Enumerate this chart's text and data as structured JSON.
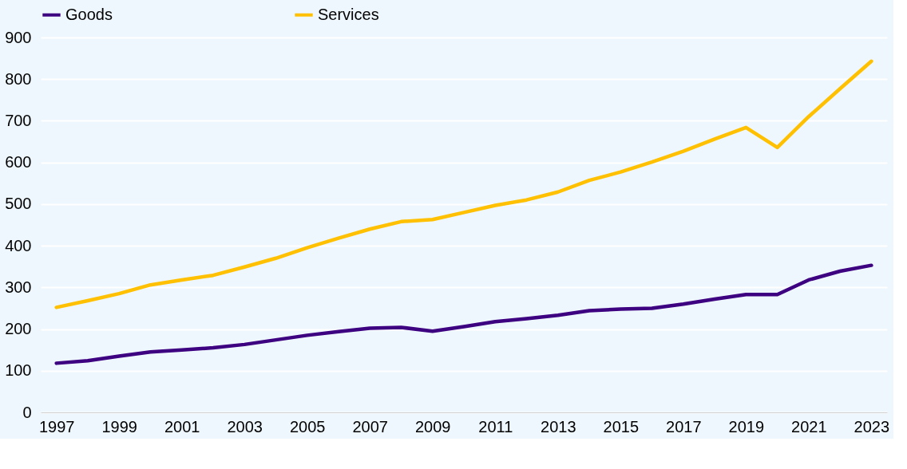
{
  "chart_data": {
    "type": "line",
    "categories": [
      "1997",
      null,
      "1999",
      null,
      "2001",
      null,
      "2003",
      null,
      "2005",
      null,
      "2007",
      null,
      "2009",
      null,
      "2011",
      null,
      "2013",
      null,
      "2015",
      null,
      "2017",
      null,
      "2019",
      null,
      "2021",
      null,
      "2023"
    ],
    "series": [
      {
        "name": "Goods",
        "color": "#3d0080",
        "values": [
          118,
          124,
          135,
          145,
          150,
          155,
          163,
          174,
          185,
          194,
          202,
          204,
          195,
          206,
          218,
          225,
          233,
          244,
          248,
          250,
          260,
          272,
          283,
          283,
          318,
          339,
          353
        ]
      },
      {
        "name": "Services",
        "color": "#ffc000",
        "values": [
          252,
          268,
          285,
          306,
          318,
          329,
          349,
          370,
          395,
          418,
          440,
          458,
          463,
          480,
          497,
          510,
          529,
          557,
          577,
          601,
          627,
          656,
          684,
          636,
          710,
          777,
          843
        ]
      }
    ],
    "ylim": [
      0,
      900
    ],
    "yticks": [
      0,
      100,
      200,
      300,
      400,
      500,
      600,
      700,
      800,
      900
    ],
    "grid": "y",
    "legend": "top",
    "marker": "none",
    "line_style": "solid"
  }
}
